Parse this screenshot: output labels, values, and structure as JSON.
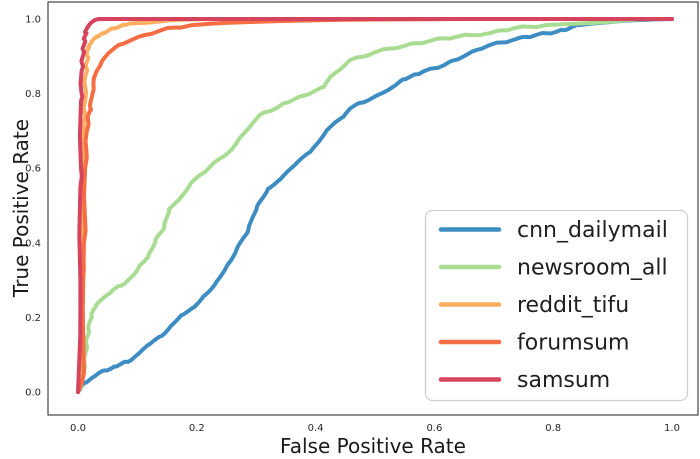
{
  "chart_data": {
    "type": "line",
    "subtype": "roc-curves",
    "title": "",
    "xlabel": "False Positive Rate",
    "ylabel": "True Positive Rate",
    "xlim": [
      -0.05,
      1.05
    ],
    "ylim": [
      -0.05,
      1.05
    ],
    "grid": false,
    "legend_position": "lower right",
    "xticks": [
      "0.0",
      "0.2",
      "0.4",
      "0.6",
      "0.8",
      "1.0"
    ],
    "yticks": [
      "0.0",
      "0.2",
      "0.4",
      "0.6",
      "0.8",
      "1.0"
    ],
    "xtick_values": [
      0.0,
      0.2,
      0.4,
      0.6,
      0.8,
      1.0
    ],
    "ytick_values": [
      0.0,
      0.2,
      0.4,
      0.6,
      0.8,
      1.0
    ],
    "colors": {
      "cnn_dailymail": "#3d8dc3",
      "newsroom_all": "#a9dc93",
      "reddit_tifu": "#fdae61",
      "forumsum": "#f46d43",
      "samsum": "#d5435c",
      "spine": "#333333",
      "legend_border": "#d0d0d0"
    },
    "series": [
      {
        "name": "cnn_dailymail",
        "color": "#3d8dc3",
        "points": [
          [
            0,
            0
          ],
          [
            0.004,
            0.008
          ],
          [
            0.008,
            0.02
          ],
          [
            0.013,
            0.025
          ],
          [
            0.019,
            0.032
          ],
          [
            0.026,
            0.04
          ],
          [
            0.034,
            0.05
          ],
          [
            0.045,
            0.058
          ],
          [
            0.056,
            0.063
          ],
          [
            0.062,
            0.068
          ],
          [
            0.072,
            0.075
          ],
          [
            0.082,
            0.081
          ],
          [
            0.09,
            0.086
          ],
          [
            0.1,
            0.1
          ],
          [
            0.11,
            0.115
          ],
          [
            0.118,
            0.126
          ],
          [
            0.128,
            0.138
          ],
          [
            0.14,
            0.15
          ],
          [
            0.146,
            0.157
          ],
          [
            0.156,
            0.176
          ],
          [
            0.165,
            0.19
          ],
          [
            0.174,
            0.206
          ],
          [
            0.185,
            0.216
          ],
          [
            0.196,
            0.228
          ],
          [
            0.202,
            0.238
          ],
          [
            0.211,
            0.256
          ],
          [
            0.221,
            0.27
          ],
          [
            0.23,
            0.287
          ],
          [
            0.24,
            0.31
          ],
          [
            0.25,
            0.336
          ],
          [
            0.258,
            0.354
          ],
          [
            0.268,
            0.386
          ],
          [
            0.278,
            0.412
          ],
          [
            0.286,
            0.43
          ],
          [
            0.294,
            0.468
          ],
          [
            0.302,
            0.5
          ],
          [
            0.311,
            0.52
          ],
          [
            0.32,
            0.545
          ],
          [
            0.331,
            0.557
          ],
          [
            0.341,
            0.571
          ],
          [
            0.352,
            0.59
          ],
          [
            0.362,
            0.604
          ],
          [
            0.376,
            0.626
          ],
          [
            0.391,
            0.644
          ],
          [
            0.405,
            0.67
          ],
          [
            0.419,
            0.702
          ],
          [
            0.431,
            0.72
          ],
          [
            0.447,
            0.738
          ],
          [
            0.458,
            0.76
          ],
          [
            0.474,
            0.775
          ],
          [
            0.49,
            0.783
          ],
          [
            0.512,
            0.801
          ],
          [
            0.534,
            0.822
          ],
          [
            0.547,
            0.838
          ],
          [
            0.559,
            0.845
          ],
          [
            0.571,
            0.852
          ],
          [
            0.581,
            0.859
          ],
          [
            0.6,
            0.868
          ],
          [
            0.616,
            0.876
          ],
          [
            0.632,
            0.889
          ],
          [
            0.651,
            0.901
          ],
          [
            0.671,
            0.917
          ],
          [
            0.693,
            0.93
          ],
          [
            0.712,
            0.937
          ],
          [
            0.733,
            0.944
          ],
          [
            0.755,
            0.952
          ],
          [
            0.771,
            0.957
          ],
          [
            0.789,
            0.962
          ],
          [
            0.806,
            0.966
          ],
          [
            0.817,
            0.97
          ],
          [
            0.831,
            0.978
          ],
          [
            0.845,
            0.984
          ],
          [
            0.862,
            0.987
          ],
          [
            0.883,
            0.99
          ],
          [
            0.91,
            0.994
          ],
          [
            0.94,
            0.997
          ],
          [
            0.97,
            0.999
          ],
          [
            1,
            1
          ]
        ]
      },
      {
        "name": "newsroom_all",
        "color": "#a9dc93",
        "points": [
          [
            0,
            0
          ],
          [
            0.006,
            0.02
          ],
          [
            0.009,
            0.05
          ],
          [
            0.011,
            0.08
          ],
          [
            0.013,
            0.105
          ],
          [
            0.014,
            0.13
          ],
          [
            0.016,
            0.15
          ],
          [
            0.018,
            0.166
          ],
          [
            0.02,
            0.19
          ],
          [
            0.023,
            0.205
          ],
          [
            0.026,
            0.22
          ],
          [
            0.03,
            0.232
          ],
          [
            0.035,
            0.241
          ],
          [
            0.039,
            0.247
          ],
          [
            0.045,
            0.255
          ],
          [
            0.052,
            0.263
          ],
          [
            0.06,
            0.275
          ],
          [
            0.07,
            0.285
          ],
          [
            0.079,
            0.291
          ],
          [
            0.088,
            0.305
          ],
          [
            0.096,
            0.318
          ],
          [
            0.104,
            0.34
          ],
          [
            0.112,
            0.351
          ],
          [
            0.118,
            0.363
          ],
          [
            0.125,
            0.385
          ],
          [
            0.131,
            0.41
          ],
          [
            0.138,
            0.425
          ],
          [
            0.145,
            0.44
          ],
          [
            0.15,
            0.47
          ],
          [
            0.153,
            0.49
          ],
          [
            0.161,
            0.502
          ],
          [
            0.17,
            0.515
          ],
          [
            0.18,
            0.535
          ],
          [
            0.19,
            0.56
          ],
          [
            0.2,
            0.575
          ],
          [
            0.214,
            0.59
          ],
          [
            0.229,
            0.615
          ],
          [
            0.245,
            0.631
          ],
          [
            0.259,
            0.65
          ],
          [
            0.27,
            0.676
          ],
          [
            0.281,
            0.696
          ],
          [
            0.294,
            0.72
          ],
          [
            0.306,
            0.743
          ],
          [
            0.32,
            0.752
          ],
          [
            0.335,
            0.762
          ],
          [
            0.349,
            0.775
          ],
          [
            0.362,
            0.783
          ],
          [
            0.381,
            0.795
          ],
          [
            0.4,
            0.808
          ],
          [
            0.414,
            0.818
          ],
          [
            0.425,
            0.845
          ],
          [
            0.44,
            0.863
          ],
          [
            0.458,
            0.89
          ],
          [
            0.479,
            0.899
          ],
          [
            0.5,
            0.911
          ],
          [
            0.525,
            0.921
          ],
          [
            0.549,
            0.928
          ],
          [
            0.571,
            0.935
          ],
          [
            0.592,
            0.941
          ],
          [
            0.615,
            0.948
          ],
          [
            0.64,
            0.953
          ],
          [
            0.661,
            0.957
          ],
          [
            0.693,
            0.962
          ],
          [
            0.717,
            0.97
          ],
          [
            0.733,
            0.975
          ],
          [
            0.76,
            0.979
          ],
          [
            0.789,
            0.984
          ],
          [
            0.818,
            0.986
          ],
          [
            0.845,
            0.988
          ],
          [
            0.872,
            0.99
          ],
          [
            0.9,
            0.993
          ],
          [
            0.92,
            0.996
          ],
          [
            0.936,
            0.998
          ],
          [
            0.952,
            1
          ],
          [
            1,
            1
          ]
        ]
      },
      {
        "name": "reddit_tifu",
        "color": "#fdae61",
        "points": [
          [
            0,
            0
          ],
          [
            0.008,
            0.04
          ],
          [
            0.008,
            0.3
          ],
          [
            0.009,
            0.36
          ],
          [
            0.009,
            0.55
          ],
          [
            0.01,
            0.6
          ],
          [
            0.01,
            0.72
          ],
          [
            0.011,
            0.75
          ],
          [
            0.012,
            0.78
          ],
          [
            0.012,
            0.82
          ],
          [
            0.013,
            0.85
          ],
          [
            0.014,
            0.87
          ],
          [
            0.015,
            0.885
          ],
          [
            0.016,
            0.9
          ],
          [
            0.016,
            0.917
          ],
          [
            0.018,
            0.925
          ],
          [
            0.02,
            0.932
          ],
          [
            0.023,
            0.94
          ],
          [
            0.027,
            0.947
          ],
          [
            0.032,
            0.953
          ],
          [
            0.037,
            0.957
          ],
          [
            0.043,
            0.962
          ],
          [
            0.05,
            0.968
          ],
          [
            0.059,
            0.975
          ],
          [
            0.07,
            0.98
          ],
          [
            0.08,
            0.984
          ],
          [
            0.087,
            0.988
          ],
          [
            0.1,
            0.989
          ],
          [
            0.116,
            0.99
          ],
          [
            0.135,
            0.993
          ],
          [
            0.152,
            0.996
          ],
          [
            0.172,
            0.998
          ],
          [
            0.2,
            0.999
          ],
          [
            0.235,
            1
          ],
          [
            1,
            1
          ]
        ]
      },
      {
        "name": "forumsum",
        "color": "#f46d43",
        "points": [
          [
            0,
            0
          ],
          [
            0.01,
            0.05
          ],
          [
            0.01,
            0.4
          ],
          [
            0.012,
            0.46
          ],
          [
            0.012,
            0.6
          ],
          [
            0.014,
            0.65
          ],
          [
            0.015,
            0.7
          ],
          [
            0.017,
            0.73
          ],
          [
            0.019,
            0.75
          ],
          [
            0.021,
            0.757
          ],
          [
            0.023,
            0.79
          ],
          [
            0.026,
            0.828
          ],
          [
            0.031,
            0.859
          ],
          [
            0.04,
            0.886
          ],
          [
            0.051,
            0.908
          ],
          [
            0.068,
            0.93
          ],
          [
            0.09,
            0.944
          ],
          [
            0.113,
            0.957
          ],
          [
            0.138,
            0.969
          ],
          [
            0.16,
            0.977
          ],
          [
            0.19,
            0.983
          ],
          [
            0.222,
            0.987
          ],
          [
            0.253,
            0.99
          ],
          [
            0.29,
            0.992
          ],
          [
            0.33,
            0.994
          ],
          [
            0.38,
            0.996
          ],
          [
            0.45,
            0.998
          ],
          [
            0.55,
            0.999
          ],
          [
            0.65,
            1
          ],
          [
            1,
            1
          ]
        ]
      },
      {
        "name": "samsum",
        "color": "#d5435c",
        "points": [
          [
            0,
            0
          ],
          [
            0.004,
            0.3
          ],
          [
            0.004,
            0.55
          ],
          [
            0.005,
            0.6
          ],
          [
            0.005,
            0.78
          ],
          [
            0.006,
            0.8
          ],
          [
            0.006,
            0.86
          ],
          [
            0.007,
            0.88
          ],
          [
            0.008,
            0.9
          ],
          [
            0.009,
            0.916
          ],
          [
            0.01,
            0.93
          ],
          [
            0.011,
            0.945
          ],
          [
            0.012,
            0.955
          ],
          [
            0.013,
            0.963
          ],
          [
            0.014,
            0.972
          ],
          [
            0.016,
            0.978
          ],
          [
            0.019,
            0.985
          ],
          [
            0.022,
            0.99
          ],
          [
            0.026,
            0.995
          ],
          [
            0.03,
            0.998
          ],
          [
            0.035,
            1
          ],
          [
            1,
            1
          ]
        ]
      }
    ]
  }
}
